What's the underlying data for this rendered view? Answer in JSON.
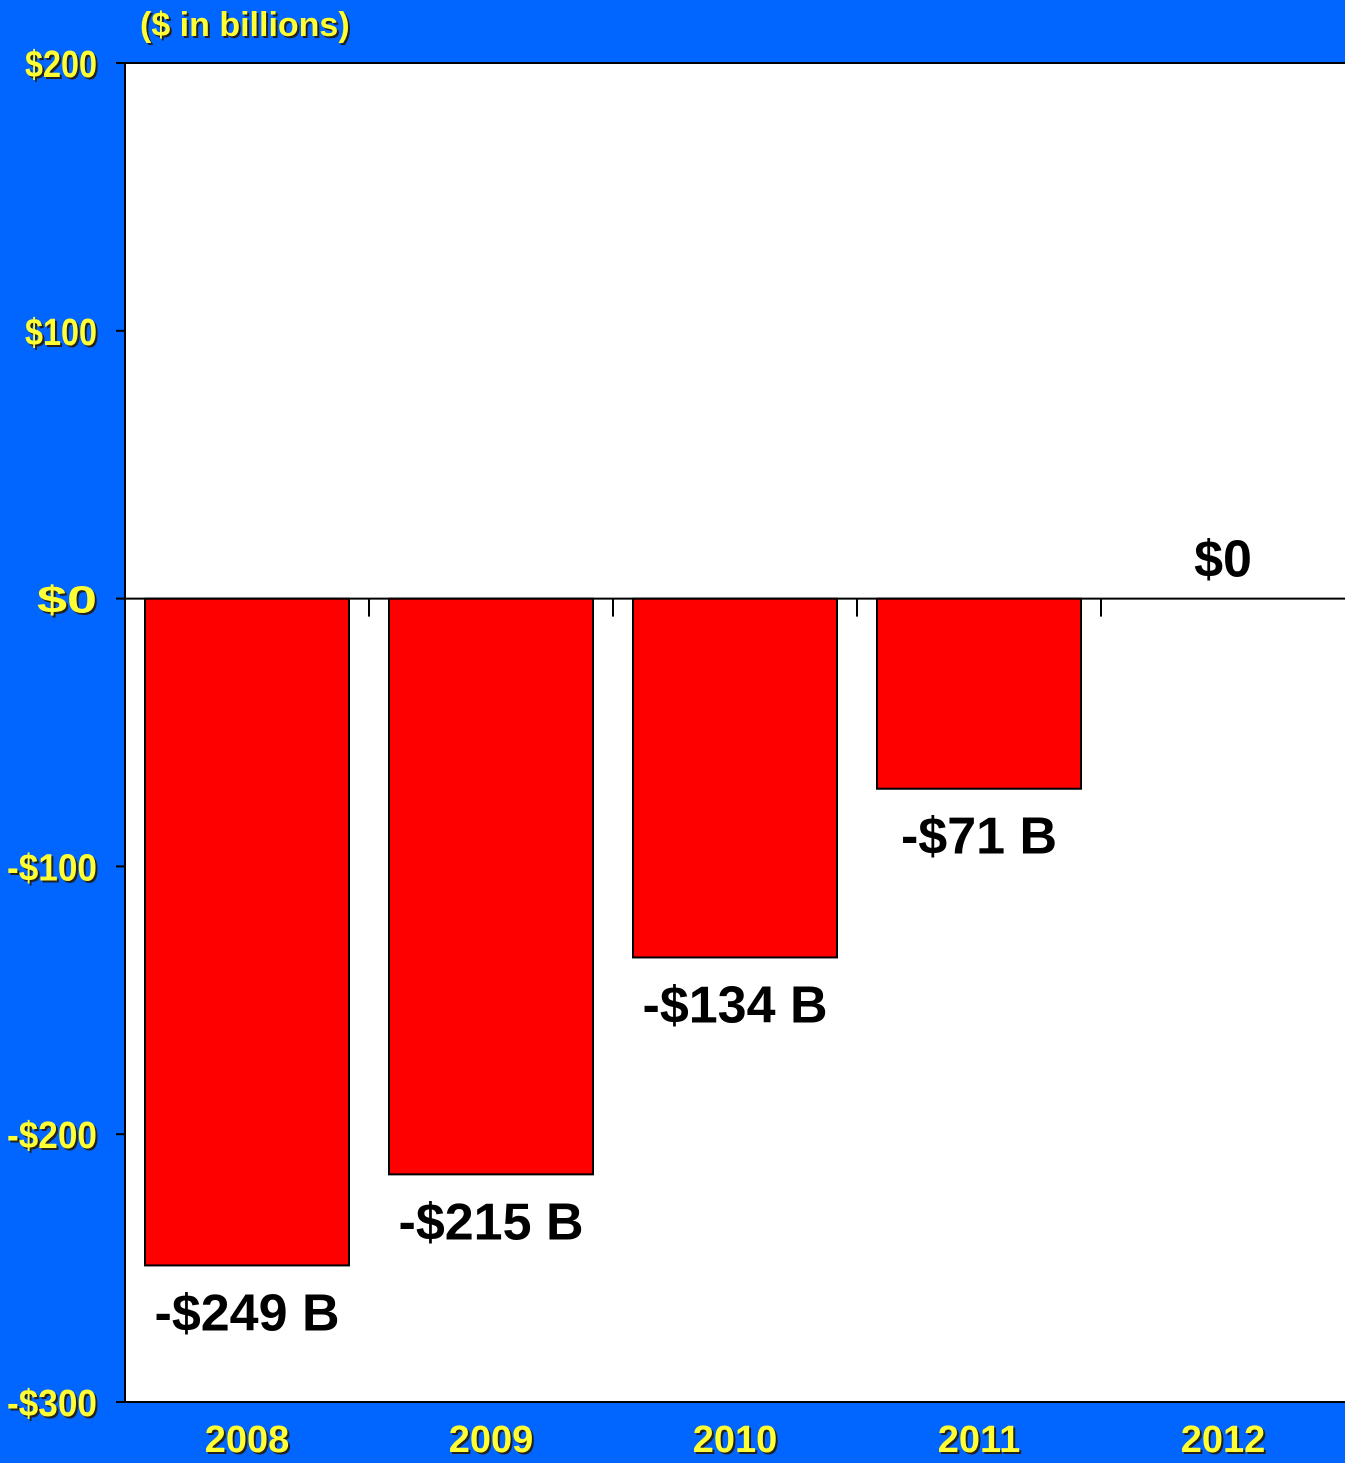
{
  "chart_data": {
    "type": "bar",
    "unit_label": "($ in billions)",
    "categories": [
      "2008",
      "2009",
      "2010",
      "2011",
      "2012"
    ],
    "values": [
      -249,
      -215,
      -134,
      -71,
      0
    ],
    "data_labels": [
      "-$249 B",
      "-$215 B",
      "-$134 B",
      "-$71 B",
      "$0"
    ],
    "ylim": [
      -300,
      200
    ],
    "yticks": [
      200,
      100,
      0,
      -100,
      -200,
      -300
    ],
    "ytick_labels": [
      "$200",
      "$100",
      "$0",
      "-$100",
      "-$200",
      "-$300"
    ],
    "grid": false,
    "colors": {
      "background": "#0066ff",
      "plot_area": "#ffffff",
      "bar": "#ff0000",
      "tick_label": "#ffff33",
      "data_label": "#000000"
    }
  }
}
